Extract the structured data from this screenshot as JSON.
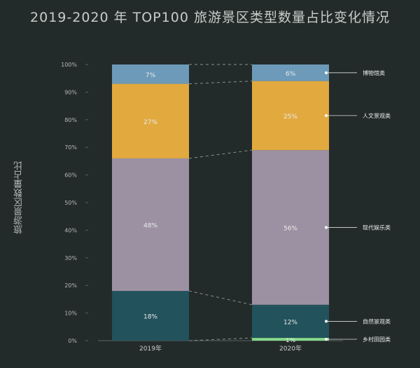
{
  "title": "2019-2020 年 TOP100 旅游景区类型数量占比变化情况",
  "colors": {
    "background": "#232b2a",
    "博物馆类": "#6d9ab8",
    "人文景观类": "#e2a93f",
    "现代娱乐类": "#9c91a2",
    "自然景观类": "#22525c",
    "乡村田园类": "#86d98a"
  },
  "chart_data": {
    "type": "bar",
    "stacked": true,
    "percent": true,
    "ylabel": "旅游景区数量占比",
    "ylim": [
      0,
      100
    ],
    "yticks": [
      "0%",
      "10%",
      "20%",
      "30%",
      "40%",
      "50%",
      "60%",
      "70%",
      "80%",
      "90%",
      "100%"
    ],
    "categories": [
      "2019年",
      "2020年"
    ],
    "series": [
      {
        "name": "乡村田园类",
        "values": [
          0,
          1
        ],
        "labels": [
          "",
          "1%"
        ]
      },
      {
        "name": "自然景观类",
        "values": [
          18,
          12
        ],
        "labels": [
          "18%",
          "12%"
        ]
      },
      {
        "name": "现代娱乐类",
        "values": [
          48,
          56
        ],
        "labels": [
          "48%",
          "56%"
        ]
      },
      {
        "name": "人文景观类",
        "values": [
          27,
          25
        ],
        "labels": [
          "27%",
          "25%"
        ]
      },
      {
        "name": "博物馆类",
        "values": [
          7,
          6
        ],
        "labels": [
          "7%",
          "6%"
        ]
      }
    ],
    "legend_position": "right"
  }
}
